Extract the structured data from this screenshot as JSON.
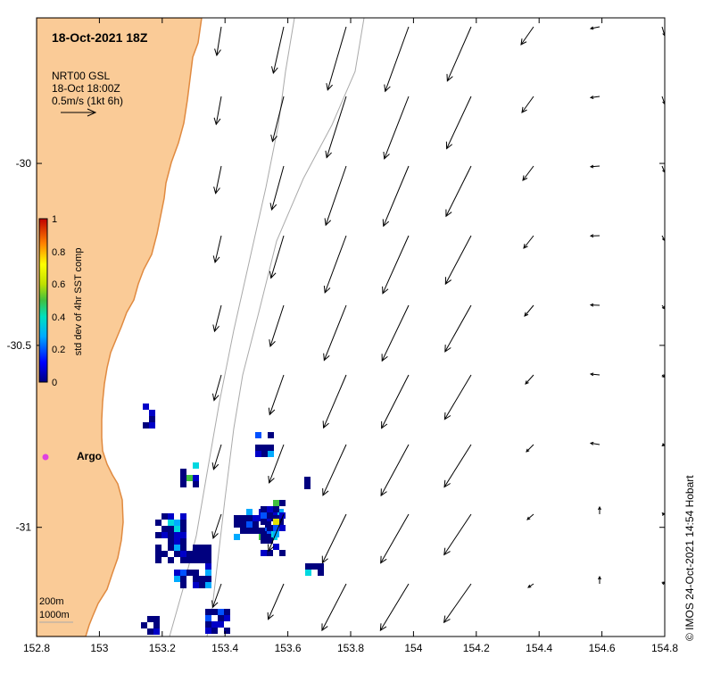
{
  "map": {
    "title": "18-Oct-2021 18Z",
    "legend_lines": [
      "NRT00 GSL",
      "18-Oct 18:00Z",
      "0.5m/s (1kt 6h)"
    ],
    "colorbar": {
      "label": "std dev of 4hr SST comp",
      "ticks": [
        "1",
        "0.8",
        "0.6",
        "0.4",
        "0.2",
        "0"
      ]
    },
    "x_ticks": [
      "152.8",
      "153",
      "153.2",
      "153.4",
      "153.6",
      "153.8",
      "154",
      "154.2",
      "154.4",
      "154.6",
      "154.8"
    ],
    "y_ticks": [
      "-30",
      "-30.5",
      "-31"
    ],
    "argo_label": "Argo",
    "isobaths": [
      "200m",
      "1000m"
    ],
    "credit": "© IMOS 24-Oct-2021 14:54 Hobart",
    "colors": {
      "land": "#FACB97",
      "coast": "#E08A40",
      "argo": "#E040E0",
      "isobath": "#AAAAAA"
    },
    "extent": {
      "lon": [
        152.8,
        154.8
      ],
      "lat": [
        -31.3,
        -29.6
      ]
    }
  }
}
